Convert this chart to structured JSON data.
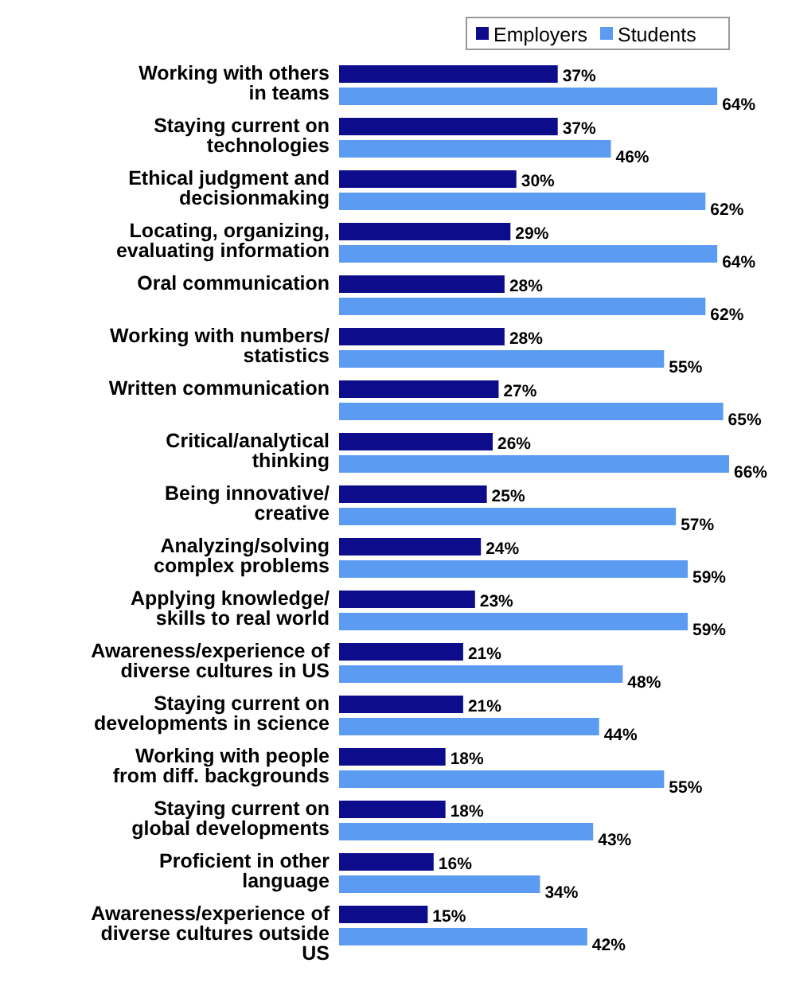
{
  "chart_data": {
    "type": "bar",
    "orientation": "horizontal",
    "legend": "top right",
    "categories": [
      "Working with others\nin teams",
      "Staying current on\ntechnologies",
      "Ethical judgment and\ndecisionmaking",
      "Locating, organizing,\nevaluating information",
      "Oral communication",
      "Working with numbers/\nstatistics",
      "Written communication",
      "Critical/analytical\nthinking",
      "Being innovative/\ncreative",
      "Analyzing/solving\ncomplex problems",
      "Applying knowledge/\nskills to real world",
      "Awareness/experience of\ndiverse cultures in US",
      "Staying current on\ndevelopments in science",
      "Working with people\nfrom diff. backgrounds",
      "Staying current on\nglobal developments",
      "Proficient in other\nlanguage",
      "Awareness/experience of\ndiverse cultures outside\nUS"
    ],
    "series": [
      {
        "name": "Employers",
        "color": "#0d0d8c",
        "values": [
          37,
          37,
          30,
          29,
          28,
          28,
          27,
          26,
          25,
          24,
          23,
          21,
          21,
          18,
          18,
          16,
          15
        ],
        "value_labels": [
          "37%",
          "37%",
          "30%",
          "29%",
          "28%",
          "28%",
          "27%",
          "26%",
          "25%",
          "24%",
          "23%",
          "21%",
          "21%",
          "18%",
          "18%",
          "16%",
          "15%"
        ]
      },
      {
        "name": "Students",
        "color": "#5b9bf2",
        "values": [
          64,
          46,
          62,
          64,
          62,
          55,
          65,
          66,
          57,
          59,
          59,
          48,
          44,
          55,
          43,
          34,
          42
        ],
        "value_labels": [
          "64%",
          "46%",
          "62%",
          "64%",
          "62%",
          "55%",
          "65%",
          "66%",
          "57%",
          "59%",
          "59%",
          "48%",
          "44%",
          "55%",
          "43%",
          "34%",
          "42%"
        ]
      }
    ]
  }
}
